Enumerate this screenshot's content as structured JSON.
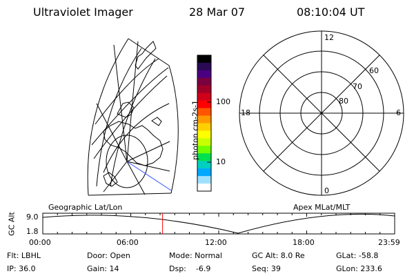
{
  "header": {
    "instrument": "Ultraviolet Imager",
    "date": "28 Mar 07",
    "time": "08:10:04 UT"
  },
  "colorbar": {
    "unit_label": "photon cm-2s-1",
    "tick_labels": [
      "100",
      "10"
    ],
    "colors": [
      "#000000",
      "#2a0a55",
      "#4a0080",
      "#7a0040",
      "#a00028",
      "#d0001a",
      "#ff0000",
      "#ff5500",
      "#ff9900",
      "#ffd000",
      "#ffff00",
      "#c8ff00",
      "#70ff00",
      "#00e050",
      "#00d0c0",
      "#00a8ff",
      "#a0e0ff",
      "#ffffff"
    ]
  },
  "polar_plot": {
    "clock_labels": [
      "12",
      "6",
      "0",
      "18"
    ],
    "lat_labels": [
      "60",
      "70",
      "80"
    ]
  },
  "timeline": {
    "left_label": "Geographic Lat/Lon",
    "right_label": "Apex MLat/MLT",
    "y_axis_title": "GC Alt",
    "y_ticks": [
      "9.0",
      "1.8"
    ],
    "x_ticks": [
      "00:00",
      "06:00",
      "12:00",
      "18:00",
      "23:59"
    ],
    "marker_time_hours": 8.17,
    "marker_color": "#ff0000"
  },
  "info": {
    "row1": [
      "Flt: LBHL",
      "Door: Open",
      "Mode: Normal",
      "GC Alt: 8.0 Re",
      "GLat: -58.8"
    ],
    "row2": [
      "IP: 36.0",
      "Gain: 14",
      "Dsp:    -6.9",
      "Seq: 39",
      "GLon: 233.6"
    ]
  }
}
